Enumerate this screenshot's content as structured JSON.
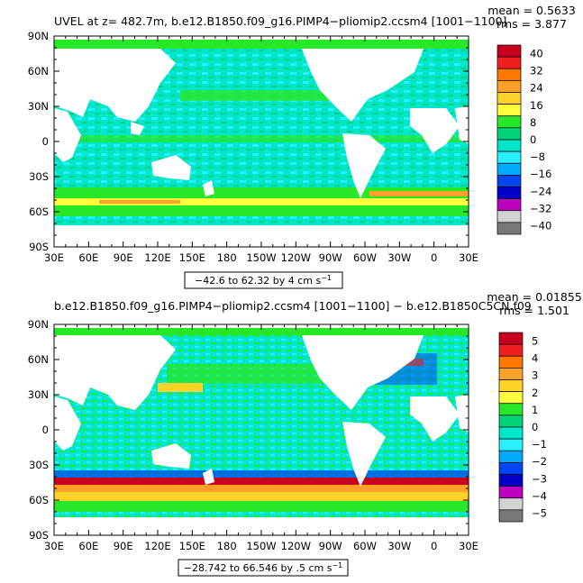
{
  "chart_data": [
    {
      "type": "heatmap",
      "title": "UVEL at z= 482.7m, b.e12.B1850.f09_g16.PIMP4−pliomip2.ccsm4 [1001−1100]",
      "stats": [
        "mean = 0.5633",
        "rms = 3.877"
      ],
      "range_label": "−42.6 to 62.32 by 4 cm s",
      "range_unit_sup": "−1",
      "xticks": [
        "30E",
        "60E",
        "90E",
        "120E",
        "150E",
        "180",
        "150W",
        "120W",
        "90W",
        "60W",
        "30W",
        "0",
        "30E"
      ],
      "yticks": [
        "90N",
        "60N",
        "30N",
        "0",
        "30S",
        "60S",
        "90S"
      ],
      "xlim": [
        30,
        390
      ],
      "ylim": [
        -90,
        90
      ],
      "colorbar_labels": [
        "40",
        "32",
        "24",
        "16",
        "8",
        "0",
        "−8",
        "−16",
        "−24",
        "−32",
        "−40"
      ],
      "colorbar_colors": [
        "#c8001e",
        "#f01e1e",
        "#ff7800",
        "#ffa028",
        "#ffd228",
        "#ffff3c",
        "#28e628",
        "#00d278",
        "#00e6c8",
        "#28f0ff",
        "#00aaff",
        "#0046f0",
        "#0000c8",
        "#be00be",
        "#d2d2d2",
        "#787878"
      ]
    },
    {
      "type": "heatmap",
      "title": "b.e12.B1850.f09_g16.PIMP4−pliomip2.ccsm4 [1001−1100] − b.e12.B1850C5CN.f09",
      "stats": [
        "mean = 0.01855",
        "rms = 1.501"
      ],
      "range_label": "−28.742 to 66.546 by .5 cm s",
      "range_unit_sup": "−1",
      "xticks": [
        "30E",
        "60E",
        "90E",
        "120E",
        "150E",
        "180",
        "150W",
        "120W",
        "90W",
        "60W",
        "30W",
        "0",
        "30E"
      ],
      "yticks": [
        "90N",
        "60N",
        "30N",
        "0",
        "30S",
        "60S",
        "90S"
      ],
      "xlim": [
        30,
        390
      ],
      "ylim": [
        -90,
        90
      ],
      "colorbar_labels": [
        "5",
        "4",
        "3",
        "2",
        "1",
        "0",
        "−1",
        "−2",
        "−3",
        "−4",
        "−5"
      ],
      "colorbar_colors": [
        "#c8001e",
        "#f01e1e",
        "#ff7800",
        "#ffa028",
        "#ffd228",
        "#ffff3c",
        "#28e628",
        "#00d278",
        "#00e6c8",
        "#28f0ff",
        "#00aaff",
        "#0046f0",
        "#0000c8",
        "#be00be",
        "#d2d2d2",
        "#787878"
      ]
    }
  ]
}
